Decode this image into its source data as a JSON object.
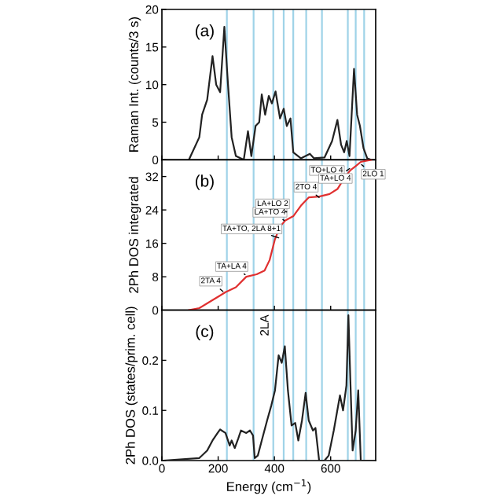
{
  "chart_data": [
    {
      "type": "line",
      "ylabel": "Raman Int. (counts/3 s)",
      "xlim": [
        0,
        760
      ],
      "xticks": [
        0,
        200,
        400,
        600
      ],
      "ylim": [
        0,
        20
      ],
      "yticks": [
        0,
        5,
        10,
        15,
        20
      ],
      "tick_labels": "y",
      "grid": false,
      "legend": false,
      "annotations": [
        "(a)"
      ],
      "series": [
        {
          "color": "#222222",
          "x": [
            96,
            133,
            143,
            161,
            180,
            193,
            207,
            222,
            235,
            248,
            263,
            291,
            306,
            318,
            333,
            346,
            355,
            367,
            380,
            391,
            404,
            420,
            433,
            444,
            457,
            467,
            494,
            526,
            541,
            578,
            605,
            624,
            637,
            648,
            657,
            667,
            683,
            694,
            704,
            717,
            730,
            744
          ],
          "values": [
            0,
            3,
            6,
            8,
            13.8,
            10,
            9,
            17.7,
            10,
            3,
            0.5,
            0,
            3.8,
            0.5,
            4.5,
            5,
            8.7,
            6,
            8.5,
            7.5,
            9.1,
            5.5,
            6.8,
            4.5,
            5.5,
            1,
            0.2,
            0.8,
            0.2,
            0.3,
            2.5,
            5.3,
            2,
            1,
            2.5,
            0.5,
            12.1,
            6,
            4.5,
            1.5,
            0.2,
            0
          ]
        }
      ],
      "ref_lines": [
        {
          "axis": "x",
          "value": 231,
          "color": "#9fd3e8"
        },
        {
          "axis": "x",
          "value": 326,
          "color": "#9fd3e8"
        },
        {
          "axis": "x",
          "value": 396,
          "color": "#9fd3e8"
        },
        {
          "axis": "x",
          "value": 433,
          "color": "#9fd3e8"
        },
        {
          "axis": "x",
          "value": 467,
          "color": "#9fd3e8"
        },
        {
          "axis": "x",
          "value": 513,
          "color": "#9fd3e8"
        },
        {
          "axis": "x",
          "value": 569,
          "color": "#9fd3e8"
        },
        {
          "axis": "x",
          "value": 661,
          "color": "#9fd3e8"
        },
        {
          "axis": "x",
          "value": 689,
          "color": "#9fd3e8"
        },
        {
          "axis": "x",
          "value": 719,
          "color": "#9fd3e8"
        }
      ]
    },
    {
      "type": "line",
      "ylabel": "2Ph DOS integrated",
      "xlim": [
        0,
        760
      ],
      "xticks": [
        0,
        200,
        400,
        600
      ],
      "ylim": [
        0,
        36
      ],
      "yticks": [
        0,
        8,
        16,
        24,
        32
      ],
      "tick_labels": "y",
      "grid": false,
      "legend": false,
      "annotations": [
        "(b)",
        {
          "text": "2TA 4",
          "x": 217,
          "y": 4.5
        },
        {
          "text": "TA+LA 4",
          "x": 309,
          "y": 8
        },
        {
          "text": "TA+TO, 2LA 8+1",
          "x": 430,
          "y": 17
        },
        {
          "text": "LA+TO 4",
          "x": 448,
          "y": 21
        },
        {
          "text": "LA+LO 2",
          "x": 457,
          "y": 23
        },
        {
          "text": "2TO 4",
          "x": 559,
          "y": 27
        },
        {
          "text": "TO+LO 4",
          "x": 652,
          "y": 31
        },
        {
          "text": "TA+LO 4",
          "x": 680,
          "y": 34.5
        },
        {
          "text": "2LO 1",
          "x": 698,
          "y": 35.5
        }
      ],
      "series": [
        {
          "color": "#e03030",
          "x": [
            96,
            133,
            170,
            207,
            226,
            263,
            300,
            337,
            365,
            383,
            402,
            420,
            439,
            467,
            494,
            522,
            559,
            596,
            624,
            652,
            670,
            689,
            707,
            744
          ],
          "values": [
            0,
            0.5,
            2,
            3.5,
            4.3,
            5.5,
            8,
            8.6,
            9.5,
            12,
            17,
            20,
            21.5,
            22.5,
            25,
            27,
            27.2,
            27.8,
            29,
            32,
            33.5,
            34.5,
            35.5,
            36
          ]
        }
      ],
      "ref_lines": [
        {
          "axis": "x",
          "value": 231,
          "color": "#9fd3e8"
        },
        {
          "axis": "x",
          "value": 326,
          "color": "#9fd3e8"
        },
        {
          "axis": "x",
          "value": 396,
          "color": "#9fd3e8"
        },
        {
          "axis": "x",
          "value": 433,
          "color": "#9fd3e8"
        },
        {
          "axis": "x",
          "value": 467,
          "color": "#9fd3e8"
        },
        {
          "axis": "x",
          "value": 513,
          "color": "#9fd3e8"
        },
        {
          "axis": "x",
          "value": 569,
          "color": "#9fd3e8"
        },
        {
          "axis": "x",
          "value": 661,
          "color": "#9fd3e8"
        },
        {
          "axis": "x",
          "value": 689,
          "color": "#9fd3e8"
        },
        {
          "axis": "x",
          "value": 719,
          "color": "#9fd3e8"
        }
      ]
    },
    {
      "type": "line",
      "xlabel": "Energy (cm$^{−1}$)",
      "ylabel": "2Ph DOS (states/prim. cell)",
      "xlim": [
        0,
        760
      ],
      "xticks": [
        0,
        200,
        400,
        600
      ],
      "ylim": [
        0,
        0.3
      ],
      "yticks": [
        {
          "value": 0,
          "label": "0.0"
        },
        0.1,
        0.2
      ],
      "grid": false,
      "legend": false,
      "annotations": [
        "(c)"
      ],
      "series": [
        {
          "color": "#222222",
          "x": [
            4,
            133,
            161,
            180,
            198,
            207,
            226,
            241,
            248,
            259,
            272,
            281,
            300,
            313,
            324,
            330,
            341,
            355,
            374,
            389,
            402,
            415,
            426,
            437,
            448,
            461,
            474,
            485,
            498,
            511,
            522,
            537,
            546,
            559,
            578,
            593,
            611,
            633,
            644,
            656,
            663,
            670,
            678,
            689,
            698,
            707,
            726,
            756
          ],
          "values": [
            0,
            0.005,
            0.02,
            0.04,
            0.055,
            0.062,
            0.055,
            0.03,
            0.04,
            0.025,
            0.045,
            0.06,
            0.055,
            0.06,
            0.05,
            0.005,
            0.01,
            0.04,
            0.08,
            0.11,
            0.14,
            0.21,
            0.195,
            0.228,
            0.14,
            0.07,
            0.075,
            0.04,
            0.08,
            0.135,
            0.08,
            0.06,
            0.065,
            0,
            0,
            0.01,
            0.06,
            0.13,
            0.1,
            0.15,
            0.29,
            0.16,
            0.02,
            0.06,
            0.14,
            0,
            0,
            0
          ]
        }
      ],
      "ref_lines": [
        {
          "axis": "x",
          "value": 231,
          "color": "#9fd3e8"
        },
        {
          "axis": "x",
          "value": 326,
          "color": "#9fd3e8"
        },
        {
          "axis": "x",
          "value": 396,
          "color": "#9fd3e8",
          "label": "2LA"
        },
        {
          "axis": "x",
          "value": 433,
          "color": "#9fd3e8"
        },
        {
          "axis": "x",
          "value": 467,
          "color": "#9fd3e8"
        },
        {
          "axis": "x",
          "value": 513,
          "color": "#9fd3e8"
        },
        {
          "axis": "x",
          "value": 569,
          "color": "#9fd3e8"
        },
        {
          "axis": "x",
          "value": 661,
          "color": "#9fd3e8"
        },
        {
          "axis": "x",
          "value": 689,
          "color": "#9fd3e8"
        },
        {
          "axis": "x",
          "value": 719,
          "color": "#9fd3e8"
        }
      ]
    }
  ]
}
